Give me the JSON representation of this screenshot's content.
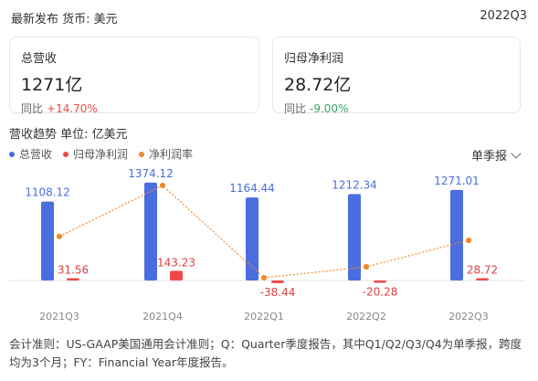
{
  "header": {
    "left": "最新发布  货币: 美元",
    "right": "2022Q3"
  },
  "cards": [
    {
      "label": "总营收",
      "value": "1271亿",
      "yoy_label": "同比",
      "yoy_value": "+14.70%",
      "yoy_sign": "pos"
    },
    {
      "label": "归母净利润",
      "value": "28.72亿",
      "yoy_label": "同比",
      "yoy_value": "-9.00%",
      "yoy_sign": "neg"
    }
  ],
  "section": {
    "title": "营收趋势  单位: 亿美元",
    "dropdown": "单季报"
  },
  "legend": [
    {
      "label": "总营收",
      "color": "#4a6ee0"
    },
    {
      "label": "归母净利润",
      "color": "#f04848"
    },
    {
      "label": "净利润率",
      "color": "#f08a2c"
    }
  ],
  "chart_data": {
    "type": "bar",
    "categories": [
      "2021Q3",
      "2021Q4",
      "2022Q1",
      "2022Q2",
      "2022Q3"
    ],
    "series": [
      {
        "name": "总营收",
        "type": "bar",
        "color": "#4a6ee0",
        "values": [
          1108.12,
          1374.12,
          1164.44,
          1212.34,
          1271.01
        ],
        "labels": [
          "1108.12",
          "1374.12",
          "1164.44",
          "1212.34",
          "1271.01"
        ]
      },
      {
        "name": "归母净利润",
        "type": "bar",
        "color": "#f04848",
        "values": [
          31.56,
          143.23,
          -38.44,
          -20.28,
          28.72
        ],
        "labels": [
          "31.56",
          "143.23",
          "-38.44",
          "-20.28",
          "28.72"
        ]
      },
      {
        "name": "净利润率",
        "type": "line",
        "color": "#f08a2c",
        "values": [
          2.85,
          10.42,
          -3.3,
          -1.67,
          2.26
        ]
      }
    ]
  },
  "footer": "会计准则：US-GAAP美国通用会计准则；Q：Quarter季度报告，其中Q1/Q2/Q3/Q4为单季报，跨度均为3个月；FY：Financial Year年度报告。"
}
